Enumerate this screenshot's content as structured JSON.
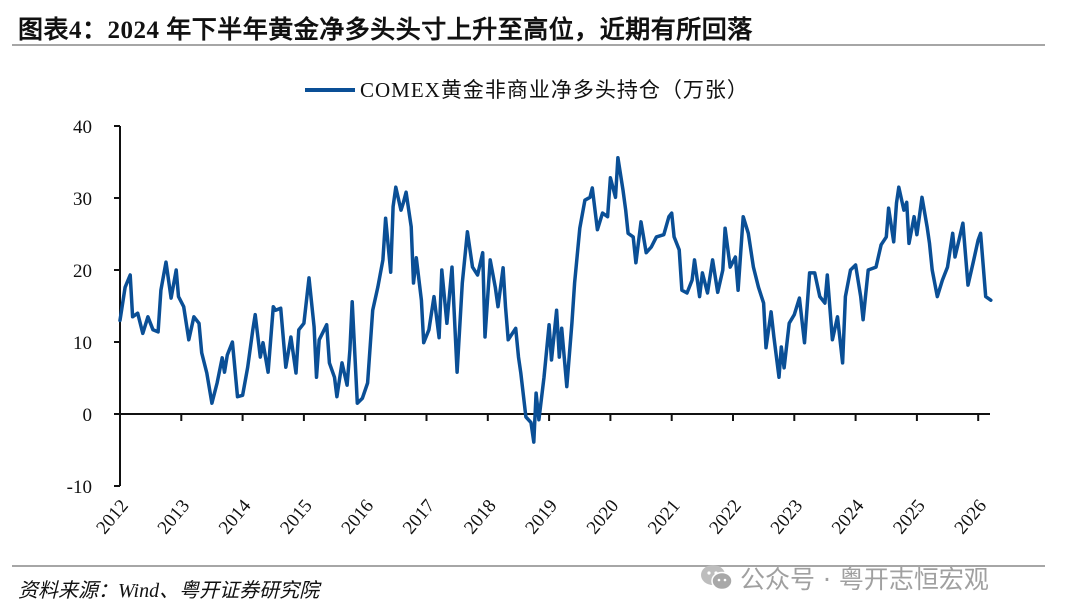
{
  "title": "图表4：2024 年下半年黄金净多头头寸上升至高位，近期有所回落",
  "source": "资料来源：Wind、粤开证券研究院",
  "watermark": "公众号 · 粤开志恒宏观",
  "watermark_icon": "wechat-icon",
  "colors": {
    "series": "#0a4f96",
    "axis": "#111111",
    "rule": "#a6a6a6"
  },
  "chart_data": {
    "type": "line",
    "title": "",
    "xlabel": "",
    "ylabel": "",
    "ylim": [
      -10,
      40
    ],
    "yticks": [
      "-10",
      "0",
      "10",
      "20",
      "30",
      "40"
    ],
    "xticks": [
      "2012",
      "2013",
      "2014",
      "2015",
      "2016",
      "2017",
      "2018",
      "2019",
      "2020",
      "2021",
      "2022",
      "2023",
      "2024",
      "2025",
      "2026"
    ],
    "grid": false,
    "legend_position": "top-center",
    "series": [
      {
        "name": "COMEX黄金非商业净多头持仓（万张）",
        "color": "#0a4f96",
        "points": [
          [
            "2012-01-01",
            13.0
          ],
          [
            "2012-02-01",
            17.6
          ],
          [
            "2012-03-01",
            19.3
          ],
          [
            "2012-03-15",
            13.5
          ],
          [
            "2012-04-15",
            14.0
          ],
          [
            "2012-05-15",
            11.2
          ],
          [
            "2012-06-15",
            13.5
          ],
          [
            "2012-07-15",
            11.7
          ],
          [
            "2012-08-15",
            11.4
          ],
          [
            "2012-09-01",
            17.2
          ],
          [
            "2012-10-01",
            21.1
          ],
          [
            "2012-11-01",
            16.1
          ],
          [
            "2012-12-01",
            20.0
          ],
          [
            "2012-12-15",
            16.3
          ],
          [
            "2013-01-15",
            14.9
          ],
          [
            "2013-02-15",
            10.3
          ],
          [
            "2013-03-15",
            13.5
          ],
          [
            "2013-04-15",
            12.6
          ],
          [
            "2013-05-01",
            8.5
          ],
          [
            "2013-06-01",
            5.7
          ],
          [
            "2013-07-01",
            1.5
          ],
          [
            "2013-08-01",
            4.3
          ],
          [
            "2013-09-01",
            7.8
          ],
          [
            "2013-09-15",
            5.8
          ],
          [
            "2013-10-01",
            8.2
          ],
          [
            "2013-11-01",
            10.0
          ],
          [
            "2013-12-01",
            2.4
          ],
          [
            "2014-01-01",
            2.6
          ],
          [
            "2014-02-01",
            6.5
          ],
          [
            "2014-03-01",
            11.7
          ],
          [
            "2014-03-15",
            13.8
          ],
          [
            "2014-04-15",
            7.9
          ],
          [
            "2014-05-01",
            9.9
          ],
          [
            "2014-06-01",
            5.8
          ],
          [
            "2014-07-01",
            14.9
          ],
          [
            "2014-07-15",
            14.4
          ],
          [
            "2014-08-15",
            14.7
          ],
          [
            "2014-09-15",
            6.5
          ],
          [
            "2014-10-15",
            10.7
          ],
          [
            "2014-11-15",
            5.7
          ],
          [
            "2014-12-01",
            11.7
          ],
          [
            "2015-01-01",
            12.6
          ],
          [
            "2015-02-01",
            18.9
          ],
          [
            "2015-03-01",
            12.1
          ],
          [
            "2015-03-15",
            5.1
          ],
          [
            "2015-04-01",
            10.3
          ],
          [
            "2015-05-15",
            12.4
          ],
          [
            "2015-06-01",
            7.1
          ],
          [
            "2015-07-01",
            5.1
          ],
          [
            "2015-07-15",
            2.4
          ],
          [
            "2015-08-15",
            7.1
          ],
          [
            "2015-09-15",
            4.0
          ],
          [
            "2015-10-01",
            8.9
          ],
          [
            "2015-10-15",
            15.6
          ],
          [
            "2015-11-15",
            1.5
          ],
          [
            "2015-12-15",
            2.2
          ],
          [
            "2016-01-15",
            4.3
          ],
          [
            "2016-02-15",
            14.4
          ],
          [
            "2016-03-15",
            17.6
          ],
          [
            "2016-04-15",
            21.4
          ],
          [
            "2016-05-01",
            27.2
          ],
          [
            "2016-06-01",
            19.7
          ],
          [
            "2016-06-15",
            28.8
          ],
          [
            "2016-07-01",
            31.5
          ],
          [
            "2016-08-01",
            28.3
          ],
          [
            "2016-08-15",
            29.3
          ],
          [
            "2016-09-01",
            30.8
          ],
          [
            "2016-10-01",
            26.0
          ],
          [
            "2016-10-15",
            18.2
          ],
          [
            "2016-11-01",
            21.7
          ],
          [
            "2016-12-01",
            15.8
          ],
          [
            "2016-12-15",
            9.9
          ],
          [
            "2017-01-15",
            11.7
          ],
          [
            "2017-02-15",
            16.3
          ],
          [
            "2017-03-15",
            10.6
          ],
          [
            "2017-04-01",
            20.0
          ],
          [
            "2017-05-01",
            12.6
          ],
          [
            "2017-06-01",
            20.4
          ],
          [
            "2017-07-01",
            5.8
          ],
          [
            "2017-08-01",
            18.2
          ],
          [
            "2017-09-01",
            25.3
          ],
          [
            "2017-10-01",
            20.4
          ],
          [
            "2017-11-01",
            19.3
          ],
          [
            "2017-12-01",
            22.4
          ],
          [
            "2017-12-15",
            10.7
          ],
          [
            "2018-01-15",
            21.4
          ],
          [
            "2018-02-15",
            17.6
          ],
          [
            "2018-03-01",
            14.9
          ],
          [
            "2018-04-01",
            20.3
          ],
          [
            "2018-04-15",
            14.9
          ],
          [
            "2018-05-01",
            10.3
          ],
          [
            "2018-06-15",
            11.9
          ],
          [
            "2018-07-01",
            7.9
          ],
          [
            "2018-07-15",
            5.7
          ],
          [
            "2018-08-15",
            -0.4
          ],
          [
            "2018-09-15",
            -1.2
          ],
          [
            "2018-10-01",
            -3.9
          ],
          [
            "2018-10-15",
            2.9
          ],
          [
            "2018-11-01",
            -0.8
          ],
          [
            "2018-12-01",
            5.1
          ],
          [
            "2019-01-01",
            12.4
          ],
          [
            "2019-01-15",
            7.5
          ],
          [
            "2019-02-15",
            14.4
          ],
          [
            "2019-03-01",
            7.9
          ],
          [
            "2019-03-15",
            11.9
          ],
          [
            "2019-04-15",
            3.8
          ],
          [
            "2019-05-15",
            12.6
          ],
          [
            "2019-06-01",
            18.2
          ],
          [
            "2019-07-01",
            25.8
          ],
          [
            "2019-08-01",
            29.7
          ],
          [
            "2019-09-01",
            30.1
          ],
          [
            "2019-09-15",
            31.4
          ],
          [
            "2019-10-15",
            25.6
          ],
          [
            "2019-11-15",
            27.9
          ],
          [
            "2019-12-15",
            27.4
          ],
          [
            "2020-01-01",
            32.8
          ],
          [
            "2020-02-01",
            30.1
          ],
          [
            "2020-02-15",
            35.6
          ],
          [
            "2020-03-15",
            31.1
          ],
          [
            "2020-04-01",
            28.3
          ],
          [
            "2020-04-15",
            25.1
          ],
          [
            "2020-05-15",
            24.6
          ],
          [
            "2020-06-01",
            21.0
          ],
          [
            "2020-07-01",
            26.7
          ],
          [
            "2020-08-01",
            22.4
          ],
          [
            "2020-09-01",
            23.2
          ],
          [
            "2020-10-01",
            24.6
          ],
          [
            "2020-11-15",
            24.9
          ],
          [
            "2020-12-15",
            27.4
          ],
          [
            "2021-01-01",
            27.9
          ],
          [
            "2021-01-15",
            24.6
          ],
          [
            "2021-02-15",
            22.8
          ],
          [
            "2021-03-01",
            17.2
          ],
          [
            "2021-04-01",
            16.8
          ],
          [
            "2021-05-01",
            18.6
          ],
          [
            "2021-05-15",
            21.4
          ],
          [
            "2021-06-15",
            16.3
          ],
          [
            "2021-07-01",
            19.6
          ],
          [
            "2021-08-01",
            16.8
          ],
          [
            "2021-09-01",
            21.4
          ],
          [
            "2021-10-01",
            16.9
          ],
          [
            "2021-11-01",
            20.0
          ],
          [
            "2021-11-15",
            25.8
          ],
          [
            "2021-12-15",
            20.4
          ],
          [
            "2022-01-15",
            21.8
          ],
          [
            "2022-02-01",
            17.2
          ],
          [
            "2022-03-01",
            27.4
          ],
          [
            "2022-04-01",
            25.1
          ],
          [
            "2022-05-01",
            20.4
          ],
          [
            "2022-06-01",
            17.6
          ],
          [
            "2022-07-01",
            15.4
          ],
          [
            "2022-07-15",
            9.2
          ],
          [
            "2022-08-15",
            14.2
          ],
          [
            "2022-09-01",
            10.7
          ],
          [
            "2022-10-01",
            5.1
          ],
          [
            "2022-10-15",
            9.3
          ],
          [
            "2022-11-01",
            6.4
          ],
          [
            "2022-12-01",
            12.6
          ],
          [
            "2023-01-01",
            13.8
          ],
          [
            "2023-02-01",
            16.1
          ],
          [
            "2023-03-01",
            9.9
          ],
          [
            "2023-04-01",
            19.6
          ],
          [
            "2023-05-01",
            19.6
          ],
          [
            "2023-06-01",
            16.3
          ],
          [
            "2023-07-01",
            15.4
          ],
          [
            "2023-07-15",
            19.3
          ],
          [
            "2023-08-15",
            10.3
          ],
          [
            "2023-09-15",
            13.5
          ],
          [
            "2023-10-15",
            7.1
          ],
          [
            "2023-11-01",
            16.3
          ],
          [
            "2023-12-01",
            20.0
          ],
          [
            "2024-01-01",
            20.7
          ],
          [
            "2024-02-01",
            16.3
          ],
          [
            "2024-02-15",
            13.1
          ],
          [
            "2024-03-15",
            20.0
          ],
          [
            "2024-05-01",
            20.4
          ],
          [
            "2024-06-01",
            23.5
          ],
          [
            "2024-07-01",
            24.6
          ],
          [
            "2024-07-15",
            28.6
          ],
          [
            "2024-08-15",
            23.9
          ],
          [
            "2024-09-01",
            29.3
          ],
          [
            "2024-09-15",
            31.5
          ],
          [
            "2024-10-15",
            28.3
          ],
          [
            "2024-11-01",
            29.4
          ],
          [
            "2024-11-15",
            23.7
          ],
          [
            "2024-12-15",
            27.4
          ],
          [
            "2025-01-01",
            24.9
          ],
          [
            "2025-02-01",
            30.1
          ],
          [
            "2025-03-01",
            26.0
          ],
          [
            "2025-03-15",
            23.7
          ],
          [
            "2025-04-01",
            20.0
          ],
          [
            "2025-05-01",
            16.3
          ],
          [
            "2025-06-01",
            18.6
          ],
          [
            "2025-07-01",
            20.4
          ],
          [
            "2025-08-01",
            25.1
          ],
          [
            "2025-08-15",
            21.8
          ],
          [
            "2025-10-01",
            26.5
          ],
          [
            "2025-11-01",
            17.9
          ],
          [
            "2025-12-01",
            21.0
          ],
          [
            "2026-01-01",
            24.2
          ],
          [
            "2026-01-15",
            25.1
          ],
          [
            "2026-02-15",
            16.3
          ],
          [
            "2026-03-15",
            15.8
          ]
        ]
      }
    ]
  }
}
